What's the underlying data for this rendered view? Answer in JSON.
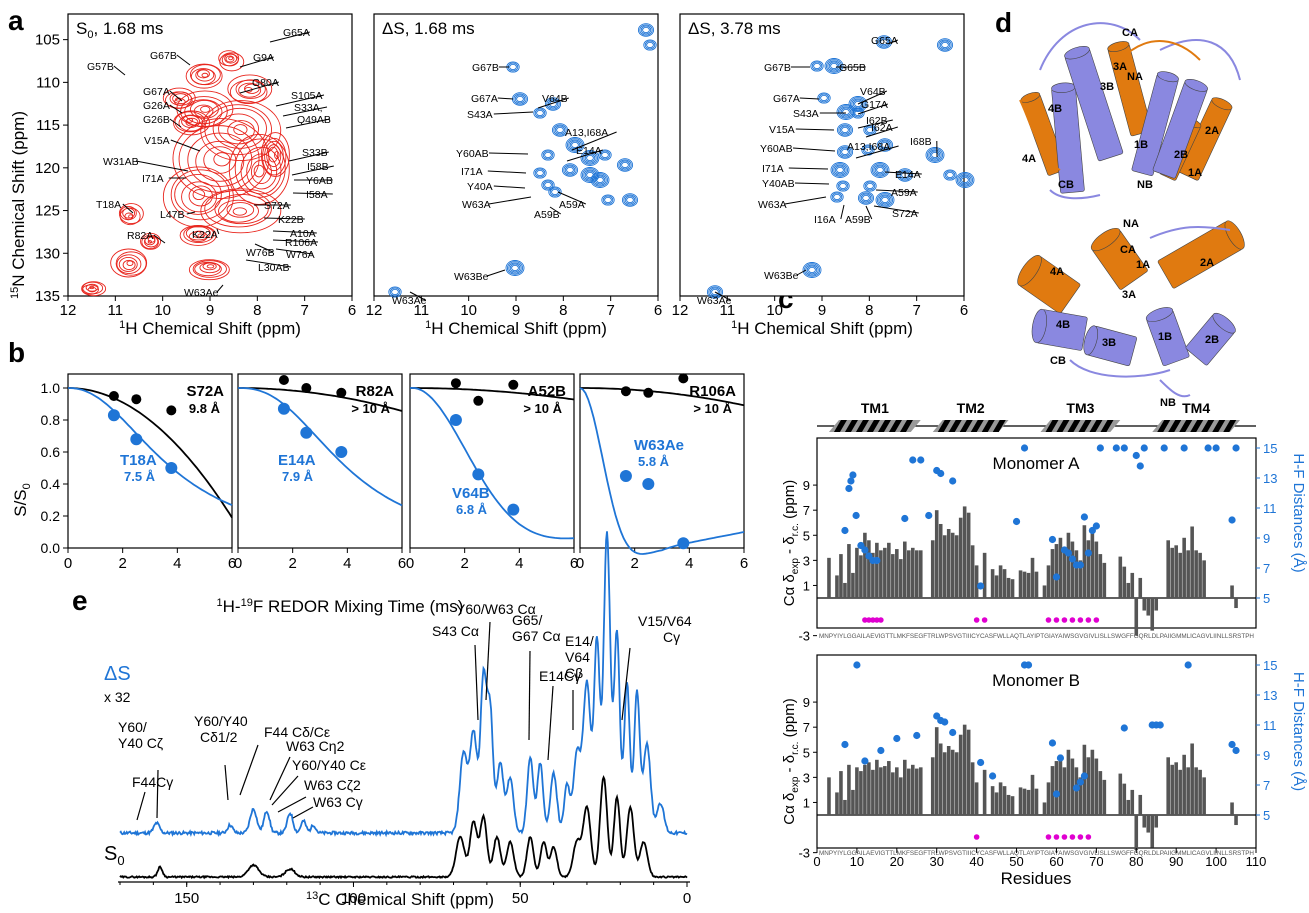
{
  "panel_letters": {
    "a": "a",
    "b": "b",
    "c": "c",
    "d": "d",
    "e": "e"
  },
  "colors": {
    "red": "#e8251d",
    "blue": "#1f75d6",
    "black": "#000000",
    "bar": "#555555",
    "orange": "#e07a10",
    "purple": "#8a88e0",
    "magenta": "#e000d0"
  },
  "panel_a": {
    "y_axis_label": "15N Chemical Shift (ppm)",
    "x_axis_label": "1H Chemical Shift (ppm)",
    "x_ticks": [
      "12",
      "11",
      "10",
      "9",
      "8",
      "7",
      "6"
    ],
    "y_ticks": [
      "105",
      "110",
      "115",
      "120",
      "125",
      "130",
      "135"
    ],
    "spectra": [
      {
        "title": "S0, 1.68 ms",
        "labels": [
          "G65A",
          "G9A",
          "G67B",
          "G57B",
          "G80A",
          "S105A",
          "S33A,",
          "Q49AB",
          "G67A",
          "G26A",
          "G26B",
          "V15A",
          "S33B",
          "I58B",
          "W31AB",
          "Y6AB",
          "I71A",
          "I58A",
          "T18A",
          "L47B",
          "S72A",
          "K22B",
          "A10A",
          "K22A",
          "R106A",
          "R82A",
          "W76B",
          "W76A",
          "L30AB",
          "W63Ae"
        ]
      },
      {
        "title": "ΔS, 1.68 ms",
        "labels": [
          "G67B",
          "G67A",
          "V64B",
          "S43A",
          "A13,I68A",
          "Y60AB",
          "E14A",
          "I71A",
          "Y40A",
          "A59A",
          "W63A",
          "A59B",
          "W63Be",
          "W63Ae"
        ]
      },
      {
        "title": "ΔS, 3.78 ms",
        "labels": [
          "G65A",
          "G67B",
          "G65B",
          "V64B",
          "G67A",
          "G17A",
          "S43A",
          "I62B",
          "V15A",
          "I62A",
          "I68B",
          "Y60AB",
          "A13,I68A",
          "I71A",
          "E14A",
          "Y40AB",
          "A59A",
          "W63A",
          "I16A",
          "A59B",
          "S72A",
          "W63Be",
          "W63Ae"
        ]
      }
    ]
  },
  "panel_b": {
    "y_axis_label": "S/S0",
    "x_axis_label": "1H-19F REDOR Mixing Time (ms)",
    "y_ticks": [
      "0.0",
      "0.2",
      "0.4",
      "0.6",
      "0.8",
      "1.0"
    ],
    "x_ticks": [
      "0",
      "2",
      "4",
      "6"
    ],
    "subpanels": [
      {
        "black_label": "S72A",
        "black_dist": "9.8 Å",
        "blue_label": "T18A",
        "blue_dist": "7.5 Å"
      },
      {
        "black_label": "R82A",
        "black_dist": "> 10 Å",
        "blue_label": "E14A",
        "blue_dist": "7.9 Å"
      },
      {
        "black_label": "A52B",
        "black_dist": "> 10 Å",
        "blue_label": "V64B",
        "blue_dist": "6.8 Å"
      },
      {
        "black_label": "R106A",
        "black_dist": "> 10 Å",
        "blue_label": "W63Ae",
        "blue_dist": "5.8 Å"
      }
    ]
  },
  "panel_c": {
    "tm_labels": [
      "TM1",
      "TM2",
      "TM3",
      "TM4"
    ],
    "monomers": [
      "Monomer A",
      "Monomer B"
    ],
    "y_axis_label": "Cα δexp - δr.c. (ppm)",
    "y2_axis_label": "H-F Distances (Å)",
    "y_ticks": [
      "-3",
      "1",
      "3",
      "5",
      "7",
      "9"
    ],
    "y2_ticks": [
      "5",
      "7",
      "9",
      "11",
      "13",
      "15"
    ],
    "x_ticks": [
      "0",
      "10",
      "20",
      "30",
      "40",
      "50",
      "60",
      "70",
      "80",
      "90",
      "100",
      "110"
    ],
    "x_axis_label": "Residues",
    "sequence": "MNPYIYLGGAILAEVIGTTLMKFSEGFTRLWPSVGTIIICYCASFWLLAQTLAYIPTGIAYAIWSGVGIVLISLLSWGFFGQRLDLPAIIGMMLICAGVLIINLLSRSTPH",
    "chart_data": [
      {
        "type": "bar",
        "title": "Monomer A",
        "residues": [
          3,
          5,
          6,
          7,
          8,
          9,
          10,
          11,
          12,
          13,
          14,
          15,
          16,
          17,
          18,
          19,
          20,
          21,
          22,
          23,
          24,
          25,
          26,
          29,
          30,
          31,
          32,
          33,
          34,
          35,
          36,
          37,
          38,
          39,
          40,
          42,
          44,
          45,
          46,
          47,
          48,
          49,
          51,
          52,
          53,
          54,
          55,
          57,
          58,
          59,
          60,
          61,
          62,
          63,
          64,
          65,
          66,
          67,
          68,
          69,
          70,
          71,
          72,
          76,
          77,
          78,
          79,
          80,
          81,
          82,
          83,
          84,
          85,
          88,
          89,
          90,
          91,
          92,
          93,
          94,
          95,
          96,
          97,
          104,
          105
        ],
        "values": [
          3.2,
          1.8,
          3.5,
          1.2,
          4.3,
          2.0,
          4.0,
          3.4,
          5.2,
          4.6,
          3.6,
          4.4,
          3.8,
          4.0,
          4.4,
          3.5,
          3.9,
          3.1,
          4.5,
          3.8,
          4.0,
          3.8,
          3.8,
          4.6,
          7.0,
          5.9,
          5.0,
          5.5,
          5.2,
          5.0,
          6.4,
          7.3,
          6.8,
          4.2,
          2.6,
          3.6,
          2.3,
          1.8,
          2.6,
          2.3,
          1.6,
          1.5,
          2.2,
          2.1,
          2.0,
          3.2,
          2.1,
          1.0,
          2.6,
          3.9,
          4.3,
          4.8,
          3.8,
          5.2,
          4.5,
          3.8,
          3.0,
          5.8,
          4.6,
          5.2,
          4.5,
          3.5,
          2.8,
          3.3,
          2.5,
          1.2,
          2.0,
          -3.0,
          1.6,
          -1.0,
          -1.4,
          -2.6,
          -1.0,
          4.6,
          4.0,
          4.2,
          3.6,
          4.8,
          3.8,
          5.7,
          3.8,
          3.6,
          3.0,
          1.0,
          -0.8
        ],
        "hf_distances": [
          [
            7.0,
            9.5
          ],
          [
            8.0,
            12.3
          ],
          [
            8.5,
            12.8
          ],
          [
            9.0,
            13.2
          ],
          [
            9.8,
            10.5
          ],
          [
            11.0,
            8.5
          ],
          [
            12.0,
            8.2
          ],
          [
            13.0,
            7.8
          ],
          [
            14.0,
            7.5
          ],
          [
            15.0,
            7.5
          ],
          [
            22.0,
            10.3
          ],
          [
            24.0,
            14.2
          ],
          [
            26.0,
            14.2
          ],
          [
            28.0,
            10.5
          ],
          [
            30.0,
            13.5
          ],
          [
            31.0,
            13.3
          ],
          [
            34.0,
            12.8
          ],
          [
            41.0,
            5.8
          ],
          [
            50.0,
            10.1
          ],
          [
            52.0,
            15.0
          ],
          [
            59.0,
            8.9
          ],
          [
            60.0,
            6.4
          ],
          [
            62.0,
            8.2
          ],
          [
            63.0,
            8.0
          ],
          [
            64.0,
            7.6
          ],
          [
            65.0,
            7.2
          ],
          [
            66.0,
            7.2
          ],
          [
            67.0,
            10.4
          ],
          [
            68.0,
            8.0
          ],
          [
            69.0,
            9.5
          ],
          [
            70.0,
            9.8
          ],
          [
            71.0,
            15.0
          ],
          [
            75.0,
            15.0
          ],
          [
            77.0,
            15.0
          ],
          [
            80.0,
            14.5
          ],
          [
            81.0,
            13.8
          ],
          [
            82.0,
            15.0
          ],
          [
            87.0,
            15.0
          ],
          [
            92.0,
            15.0
          ],
          [
            98.0,
            15.0
          ],
          [
            100.0,
            15.0
          ],
          [
            104.0,
            10.2
          ],
          [
            105.0,
            15.0
          ]
        ]
      },
      {
        "type": "bar",
        "title": "Monomer B",
        "residues": [
          3,
          5,
          6,
          7,
          8,
          9,
          10,
          11,
          12,
          13,
          14,
          15,
          16,
          17,
          18,
          19,
          20,
          21,
          22,
          23,
          24,
          25,
          26,
          29,
          30,
          31,
          32,
          33,
          34,
          35,
          36,
          37,
          38,
          39,
          40,
          42,
          44,
          45,
          46,
          47,
          48,
          49,
          51,
          52,
          53,
          54,
          55,
          57,
          58,
          59,
          60,
          61,
          62,
          63,
          64,
          65,
          66,
          67,
          68,
          69,
          70,
          71,
          72,
          76,
          77,
          78,
          79,
          80,
          81,
          82,
          83,
          84,
          85,
          88,
          89,
          90,
          91,
          92,
          93,
          94,
          95,
          96,
          97,
          104,
          105
        ],
        "values": [
          3.0,
          1.8,
          3.5,
          1.2,
          4.0,
          2.0,
          3.8,
          3.5,
          4.0,
          4.2,
          3.6,
          4.4,
          3.8,
          3.9,
          4.3,
          3.4,
          3.8,
          3.0,
          4.4,
          3.7,
          4.0,
          3.7,
          3.8,
          4.6,
          7.0,
          5.7,
          5.0,
          5.5,
          5.2,
          5.0,
          6.4,
          7.2,
          6.8,
          4.2,
          2.6,
          3.6,
          2.3,
          1.8,
          2.6,
          2.3,
          1.6,
          1.5,
          2.2,
          2.1,
          2.0,
          3.2,
          2.1,
          1.0,
          2.6,
          3.9,
          4.3,
          4.8,
          3.8,
          5.2,
          4.5,
          3.8,
          3.0,
          5.6,
          4.6,
          5.2,
          4.5,
          3.5,
          2.8,
          3.3,
          2.5,
          1.2,
          2.0,
          -2.8,
          1.6,
          -1.0,
          -1.4,
          -2.6,
          -1.0,
          4.6,
          4.0,
          4.2,
          3.6,
          4.8,
          3.8,
          5.7,
          3.8,
          3.6,
          3.0,
          1.0,
          -0.8
        ],
        "hf_distances": [
          [
            7.0,
            9.7
          ],
          [
            10.0,
            15.0
          ],
          [
            12.0,
            8.6
          ],
          [
            16.0,
            9.3
          ],
          [
            20.0,
            10.1
          ],
          [
            25.0,
            10.3
          ],
          [
            30.0,
            11.6
          ],
          [
            31.0,
            11.3
          ],
          [
            32.0,
            11.2
          ],
          [
            34.0,
            10.5
          ],
          [
            41.0,
            8.5
          ],
          [
            44.0,
            7.6
          ],
          [
            52.0,
            15.0
          ],
          [
            53.0,
            15.0
          ],
          [
            59.0,
            9.8
          ],
          [
            60.0,
            6.4
          ],
          [
            61.0,
            8.8
          ],
          [
            65.0,
            6.8
          ],
          [
            66.0,
            7.2
          ],
          [
            67.0,
            7.6
          ],
          [
            77.0,
            10.8
          ],
          [
            84.0,
            11.0
          ],
          [
            85.0,
            11.0
          ],
          [
            86.0,
            11.0
          ],
          [
            93.0,
            15.0
          ],
          [
            104.0,
            9.7
          ],
          [
            105.0,
            9.3
          ]
        ]
      }
    ]
  },
  "panel_d": {
    "top_labels": [
      "CA",
      "NA",
      "3A",
      "3B",
      "4B",
      "4A",
      "1B",
      "2B",
      "2A",
      "1A",
      "CB",
      "NB"
    ],
    "bottom_labels": [
      "NA",
      "CA",
      "1A",
      "2A",
      "4A",
      "3A",
      "4B",
      "CB",
      "3B",
      "1B",
      "2B",
      "NB"
    ]
  },
  "panel_e": {
    "x_axis_label": "13C Chemical Shift (ppm)",
    "x_ticks": [
      "150",
      "100",
      "50",
      "0"
    ],
    "trace_labels": [
      "ΔS",
      "x 32",
      "S0"
    ],
    "annotations": [
      "Y60/Y40 Cζ",
      "F44Cγ",
      "Y60/Y40 Cδ1/2",
      "F44 Cδ/Cε",
      "W63 Cη2",
      "Y60/Y40 Cε",
      "W63 Cζ2",
      "W63 Cγ",
      "S43 Cα",
      "Y60/W63 Cα",
      "G65/G67 Cα",
      "E14Cγ",
      "E14/V64 Cβ",
      "V15/V64 Cγ"
    ]
  }
}
